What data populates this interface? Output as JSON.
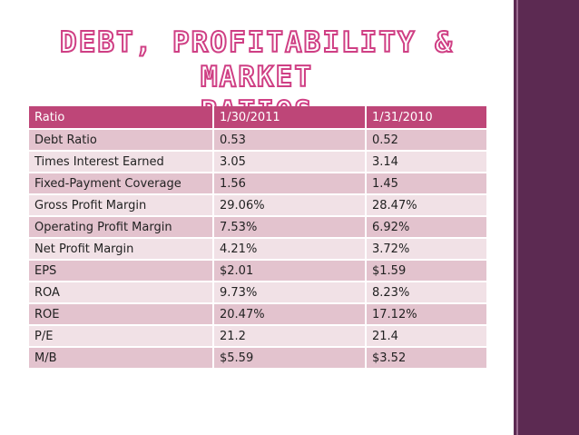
{
  "slide": {
    "title_line1": "DEBT, PROFITABILITY & MARKET",
    "title_line2": "RATIOS",
    "accent_color": "#be4678",
    "sidebar_color": "#5c2a52"
  },
  "table": {
    "headers": [
      "Ratio",
      "1/30/2011",
      "1/31/2010"
    ],
    "rows": [
      [
        "Debt Ratio",
        "0.53",
        "0.52"
      ],
      [
        "Times Interest Earned",
        "3.05",
        "3.14"
      ],
      [
        "Fixed-Payment Coverage",
        "1.56",
        "1.45"
      ],
      [
        "Gross Profit Margin",
        "29.06%",
        "28.47%"
      ],
      [
        "Operating Profit Margin",
        "7.53%",
        "6.92%"
      ],
      [
        "Net Profit Margin",
        "4.21%",
        "3.72%"
      ],
      [
        "EPS",
        "$2.01",
        "$1.59"
      ],
      [
        "ROA",
        "9.73%",
        "8.23%"
      ],
      [
        "ROE",
        "20.47%",
        "17.12%"
      ],
      [
        "P/E",
        "21.2",
        "21.4"
      ],
      [
        "M/B",
        "$5.59",
        "$3.52"
      ]
    ]
  }
}
